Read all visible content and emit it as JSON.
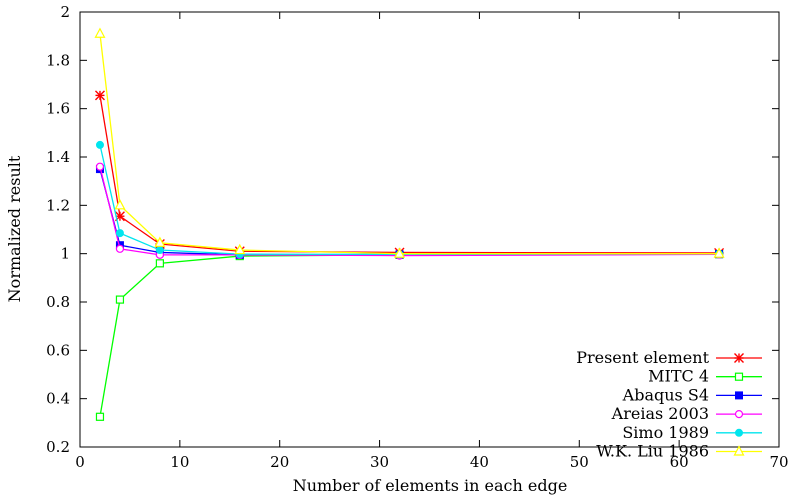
{
  "chart_data": {
    "type": "line",
    "xlabel": "Number of elements in each edge",
    "ylabel": "Normalized result",
    "xlim": [
      0,
      70
    ],
    "ylim": [
      0.2,
      2
    ],
    "xticks": [
      0,
      10,
      20,
      30,
      40,
      50,
      60,
      70
    ],
    "yticks": [
      0.2,
      0.4,
      0.6,
      0.8,
      1,
      1.2,
      1.4,
      1.6,
      1.8,
      2
    ],
    "grid": false,
    "legend_position": "bottom-right",
    "x": [
      2,
      4,
      8,
      16,
      32,
      64
    ],
    "series": [
      {
        "name": "Present element",
        "color": "#ff0000",
        "marker": "star",
        "values": [
          1.655,
          1.155,
          1.04,
          1.01,
          1.005,
          1.003
        ]
      },
      {
        "name": "MITC 4",
        "color": "#00ff00",
        "marker": "square-open",
        "values": [
          0.325,
          0.81,
          0.96,
          0.99,
          0.995,
          0.998
        ]
      },
      {
        "name": "Abaqus S4",
        "color": "#0000ff",
        "marker": "square-filled",
        "values": [
          1.35,
          1.035,
          1.005,
          0.995,
          0.997,
          0.998
        ]
      },
      {
        "name": "Areias 2003",
        "color": "#ff00ff",
        "marker": "circle-open",
        "values": [
          1.36,
          1.02,
          0.995,
          0.995,
          0.992,
          0.997
        ]
      },
      {
        "name": "Simo 1989",
        "color": "#00e5ee",
        "marker": "circle-filled",
        "values": [
          1.45,
          1.085,
          1.015,
          0.998,
          0.997,
          0.999
        ]
      },
      {
        "name": "W.K. Liu 1986",
        "color": "#ffff00",
        "marker": "triangle-open",
        "values": [
          1.91,
          1.2,
          1.045,
          1.015,
          1.0,
          1.0
        ]
      }
    ]
  }
}
